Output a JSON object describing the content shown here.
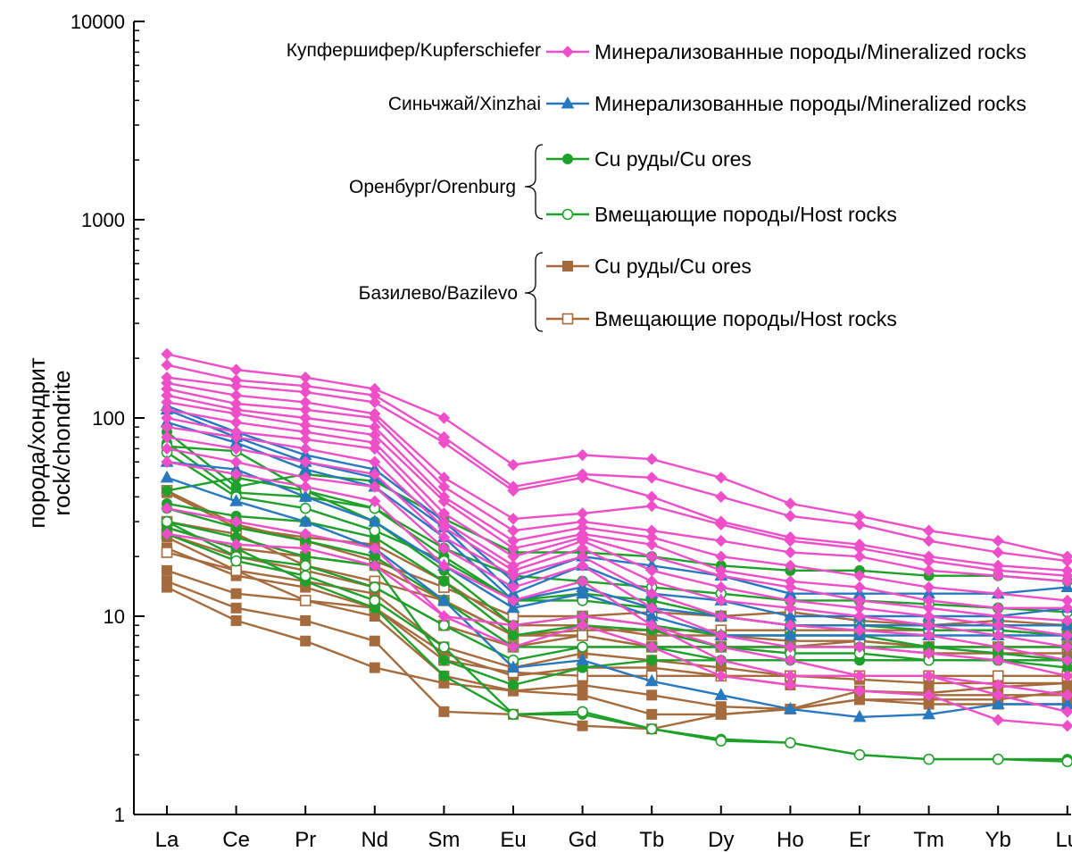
{
  "chart_data": {
    "type": "line",
    "yscale": "log",
    "ylim": [
      1,
      10000
    ],
    "yticks": [
      "1",
      "10",
      "100",
      "1000",
      "10000"
    ],
    "ylabel_line1": "порода/хондрит",
    "ylabel_line2": "rock/chondrite",
    "categories": [
      "La",
      "Ce",
      "Pr",
      "Nd",
      "Sm",
      "Eu",
      "Gd",
      "Tb",
      "Dy",
      "Ho",
      "Er",
      "Tm",
      "Yb",
      "Lu"
    ],
    "colors": {
      "kupferschiefer": "#ee4fc9",
      "xinzhai": "#2878c0",
      "orenburg": "#1fa02a",
      "bazilevo": "#a66b3c"
    },
    "legend": {
      "kupferschiefer_group": "Купфершифер/Kupferschiefer",
      "kupferschiefer_entry": "Минерализованные породы/Mineralized rocks",
      "xinzhai_group": "Синьчжай/Xinzhai",
      "xinzhai_entry": "Минерализованные породы/Mineralized rocks",
      "orenburg_group": "Оренбург/Orenburg",
      "orenburg_ore": "Cu руды/Cu ores",
      "orenburg_host": "Вмещающие породы/Host rocks",
      "bazilevo_group": "Базилево/Bazilevo",
      "bazilevo_ore": "Cu руды/Cu ores",
      "bazilevo_host": "Вмещающие породы/Host rocks"
    },
    "series": [
      {
        "group": "kupferschiefer",
        "marker": "diamond",
        "values": [
          210,
          175,
          160,
          140,
          100,
          58,
          65,
          62,
          50,
          37,
          32,
          27,
          24,
          20
        ]
      },
      {
        "group": "kupferschiefer",
        "marker": "diamond",
        "values": [
          185,
          155,
          145,
          130,
          80,
          45,
          52,
          50,
          40,
          32,
          29,
          24,
          21,
          19
        ]
      },
      {
        "group": "kupferschiefer",
        "marker": "diamond",
        "values": [
          160,
          145,
          135,
          120,
          75,
          43,
          50,
          40,
          30,
          25,
          23,
          20,
          18,
          17
        ]
      },
      {
        "group": "kupferschiefer",
        "marker": "diamond",
        "values": [
          150,
          130,
          120,
          105,
          50,
          31,
          33,
          36,
          29,
          24,
          22,
          19,
          17,
          16
        ]
      },
      {
        "group": "kupferschiefer",
        "marker": "diamond",
        "values": [
          140,
          118,
          110,
          100,
          45,
          27,
          30,
          27,
          24,
          21,
          20,
          17,
          16,
          15
        ]
      },
      {
        "group": "kupferschiefer",
        "marker": "diamond",
        "values": [
          130,
          110,
          100,
          90,
          40,
          24,
          28,
          25,
          20,
          18,
          16,
          14,
          13,
          12
        ]
      },
      {
        "group": "kupferschiefer",
        "marker": "diamond",
        "values": [
          120,
          105,
          92,
          82,
          38,
          22,
          26,
          23,
          17,
          15,
          14,
          12,
          11,
          11
        ]
      },
      {
        "group": "kupferschiefer",
        "marker": "diamond",
        "values": [
          110,
          95,
          85,
          75,
          33,
          20,
          25,
          20,
          16,
          14,
          12,
          11,
          10,
          9.5
        ]
      },
      {
        "group": "kupferschiefer",
        "marker": "diamond",
        "values": [
          100,
          85,
          78,
          70,
          30,
          18,
          24,
          17,
          14,
          12,
          11,
          10,
          9,
          8
        ]
      },
      {
        "group": "kupferschiefer",
        "marker": "diamond",
        "values": [
          90,
          80,
          70,
          60,
          28,
          17,
          22,
          15,
          12,
          11,
          10,
          9,
          8,
          7
        ]
      },
      {
        "group": "kupferschiefer",
        "marker": "diamond",
        "values": [
          80,
          70,
          60,
          52,
          25,
          16,
          20,
          13,
          10,
          9,
          8.5,
          8,
          7,
          6
        ]
      },
      {
        "group": "kupferschiefer",
        "marker": "diamond",
        "values": [
          70,
          60,
          50,
          45,
          22,
          14,
          18,
          11,
          8,
          7,
          7,
          6.5,
          6,
          5
        ]
      },
      {
        "group": "kupferschiefer",
        "marker": "diamond",
        "values": [
          60,
          52,
          45,
          38,
          18,
          12,
          15,
          9,
          6,
          5,
          5,
          5,
          4.5,
          4
        ]
      },
      {
        "group": "kupferschiefer",
        "marker": "diamond",
        "values": [
          35,
          30,
          26,
          22,
          10,
          7,
          9,
          7,
          5,
          4.5,
          4.2,
          4,
          3,
          2.8
        ]
      },
      {
        "group": "kupferschiefer",
        "marker": "diamond",
        "values": [
          26,
          23,
          22,
          18,
          10,
          9,
          10,
          9,
          7,
          6,
          5,
          5,
          4,
          3.3
        ]
      },
      {
        "group": "xinzhai",
        "marker": "triangle",
        "values": [
          115,
          85,
          65,
          55,
          30,
          15,
          20,
          18,
          16,
          13,
          13,
          13,
          13,
          14
        ]
      },
      {
        "group": "xinzhai",
        "marker": "triangle",
        "values": [
          110,
          80,
          60,
          50,
          28,
          13,
          18,
          13,
          12,
          10,
          10,
          10,
          10,
          11
        ]
      },
      {
        "group": "xinzhai",
        "marker": "triangle",
        "values": [
          95,
          75,
          55,
          45,
          25,
          12,
          14,
          11,
          10,
          9,
          9,
          9,
          9,
          9
        ]
      },
      {
        "group": "xinzhai",
        "marker": "triangle",
        "values": [
          60,
          55,
          40,
          30,
          18,
          11,
          13,
          10,
          8,
          8,
          8,
          8,
          8,
          8
        ]
      },
      {
        "group": "xinzhai",
        "marker": "triangle",
        "values": [
          50,
          38,
          30,
          22,
          12,
          5.5,
          6,
          4.7,
          4,
          3.4,
          3.1,
          3.2,
          3.6,
          3.6
        ]
      },
      {
        "group": "orenburg",
        "marker": "circle",
        "values": [
          85,
          45,
          52,
          48,
          31,
          21,
          21,
          20,
          18,
          17,
          17,
          16,
          16,
          15
        ]
      },
      {
        "group": "orenburg",
        "marker": "circle",
        "values": [
          75,
          42,
          40,
          35,
          20,
          12,
          13,
          12,
          10,
          9,
          9,
          9,
          9,
          9
        ]
      },
      {
        "group": "orenburg",
        "marker": "circle",
        "values": [
          43,
          50,
          43,
          30,
          17,
          9,
          10,
          9,
          8,
          8,
          8,
          7,
          7,
          7
        ]
      },
      {
        "group": "orenburg",
        "marker": "circle",
        "values": [
          37,
          32,
          30,
          25,
          15,
          8,
          9,
          8.5,
          7,
          7,
          7,
          7,
          6.5,
          6
        ]
      },
      {
        "group": "orenburg",
        "marker": "circle",
        "values": [
          35,
          28,
          24,
          20,
          12,
          7,
          7,
          7,
          6,
          6,
          6,
          6,
          6,
          5.5
        ]
      },
      {
        "group": "orenburg",
        "marker": "circle",
        "values": [
          30,
          25,
          20,
          18,
          6,
          4.5,
          5.5,
          6,
          6,
          6,
          6,
          6,
          6,
          6
        ]
      },
      {
        "group": "orenburg",
        "marker": "circle",
        "values": [
          28,
          22,
          15,
          11,
          5,
          3.2,
          3.2,
          2.7,
          2.4,
          2.3,
          2,
          1.9,
          1.9,
          1.9
        ]
      },
      {
        "group": "orenburg",
        "marker": "circle_open",
        "values": [
          72,
          68,
          43,
          35,
          22,
          16,
          15,
          14,
          13,
          12,
          12,
          11.5,
          11,
          10.5
        ]
      },
      {
        "group": "orenburg",
        "marker": "circle_open",
        "values": [
          67,
          40,
          35,
          27,
          19,
          12,
          12,
          11,
          10,
          9,
          9,
          8.5,
          8.5,
          8
        ]
      },
      {
        "group": "orenburg",
        "marker": "circle_open",
        "values": [
          30,
          20,
          18,
          14,
          9,
          6,
          7,
          7,
          7,
          6.5,
          6.5,
          6,
          6,
          6
        ]
      },
      {
        "group": "orenburg",
        "marker": "circle_open",
        "values": [
          26,
          19,
          16,
          12,
          7,
          3.2,
          3.3,
          2.7,
          2.35,
          2.3,
          2,
          1.9,
          1.9,
          1.85
        ]
      },
      {
        "group": "bazilevo",
        "marker": "square",
        "values": [
          42,
          28,
          25,
          23,
          15,
          9,
          9,
          8,
          8,
          7.5,
          7.5,
          7,
          7,
          7
        ]
      },
      {
        "group": "bazilevo",
        "marker": "square",
        "values": [
          28,
          22,
          20,
          18,
          12,
          8,
          8,
          7,
          7,
          7,
          7,
          6.5,
          6.5,
          6.5
        ]
      },
      {
        "group": "bazilevo",
        "marker": "square",
        "values": [
          25,
          17,
          15,
          13,
          7,
          5.5,
          6.5,
          6,
          5.5,
          5,
          4.8,
          4.6,
          4.6,
          4.6
        ]
      },
      {
        "group": "bazilevo",
        "marker": "square",
        "values": [
          22,
          16,
          14,
          11,
          6.5,
          5,
          5.5,
          5.5,
          5,
          4.5,
          4.2,
          4,
          4,
          4
        ]
      },
      {
        "group": "bazilevo",
        "marker": "square",
        "values": [
          17,
          13,
          12,
          10,
          5,
          4.2,
          4.5,
          4,
          3.5,
          3.4,
          3.8,
          3.6,
          3.6,
          3.6
        ]
      },
      {
        "group": "bazilevo",
        "marker": "square",
        "values": [
          14,
          9.5,
          7.5,
          5.5,
          4.6,
          4.2,
          4,
          3.2,
          3.2,
          3.4,
          3.8,
          3.8,
          3.8,
          4.2
        ]
      },
      {
        "group": "bazilevo",
        "marker": "square",
        "values": [
          15,
          11,
          9.5,
          7.5,
          3.3,
          3.2,
          2.8,
          2.7,
          3.2,
          3.4,
          4.2,
          4.1,
          4.4,
          4.6
        ]
      },
      {
        "group": "bazilevo",
        "marker": "square_open",
        "values": [
          43,
          29,
          24,
          19,
          14,
          10,
          10,
          10.5,
          10,
          10.5,
          9.5,
          9,
          9.5,
          9
        ]
      },
      {
        "group": "bazilevo",
        "marker": "square_open",
        "values": [
          30,
          26,
          18,
          15,
          12,
          8,
          8.5,
          8.5,
          8.5,
          8.5,
          8.5,
          8.5,
          8.5,
          8
        ]
      },
      {
        "group": "bazilevo",
        "marker": "square_open",
        "values": [
          26,
          20,
          17,
          14,
          9,
          7,
          8,
          7,
          7,
          7,
          7.5,
          7,
          7,
          7
        ]
      },
      {
        "group": "bazilevo",
        "marker": "square_open",
        "values": [
          21,
          17,
          12,
          11,
          6,
          5.2,
          5,
          5,
          5,
          5,
          5,
          5,
          5,
          5
        ]
      }
    ]
  }
}
